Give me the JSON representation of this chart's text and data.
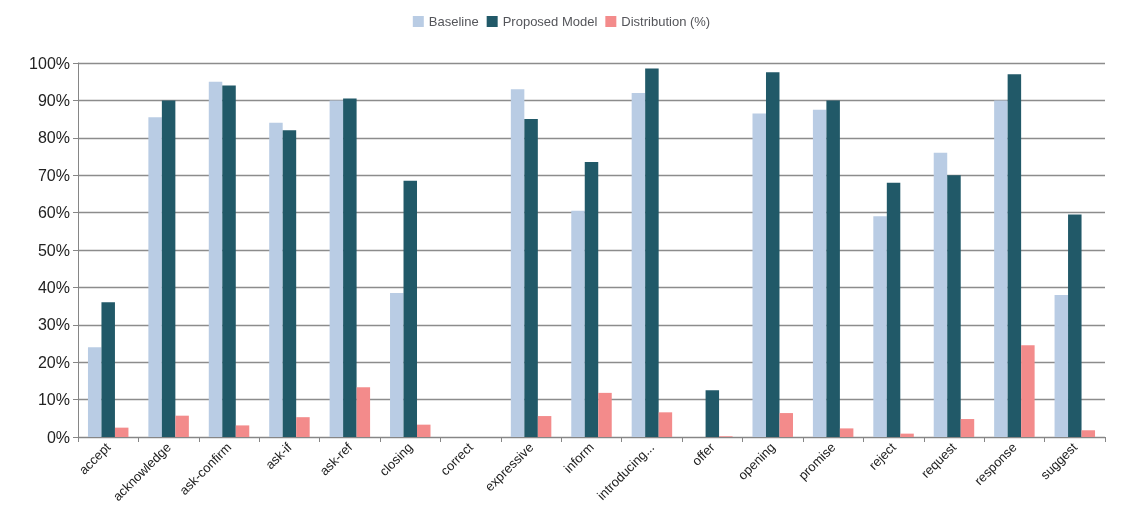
{
  "chart_data": {
    "type": "bar",
    "categories": [
      "accept",
      "acknowledge",
      "ask-confirm",
      "ask-if",
      "ask-ref",
      "closing",
      "correct",
      "expressive",
      "inform",
      "introducing...",
      "offer",
      "opening",
      "promise",
      "reject",
      "request",
      "response",
      "suggest"
    ],
    "series": [
      {
        "name": "Baseline",
        "color": "#b9cce4",
        "values": [
          24,
          85.5,
          95,
          84,
          90,
          38.5,
          0,
          93,
          60.5,
          92,
          0,
          86.5,
          87.5,
          59,
          76,
          90,
          38
        ]
      },
      {
        "name": "Proposed Model",
        "color": "#215968",
        "values": [
          36,
          90,
          94,
          82,
          90.5,
          68.5,
          0,
          85,
          73.5,
          98.5,
          12.5,
          97.5,
          90,
          68,
          70,
          97,
          59.5
        ]
      },
      {
        "name": "Distribution (%)",
        "color": "#f38b8b",
        "values": [
          2.5,
          5.7,
          3.1,
          5.3,
          13.3,
          3.3,
          0,
          5.6,
          11.8,
          6.6,
          0.2,
          6.4,
          2.3,
          0.9,
          4.8,
          24.5,
          1.8
        ]
      }
    ],
    "ylim": [
      0,
      100
    ],
    "yticks": [
      {
        "value": 0,
        "label": "0%"
      },
      {
        "value": 10,
        "label": "10%"
      },
      {
        "value": 20,
        "label": "20%"
      },
      {
        "value": 30,
        "label": "30%"
      },
      {
        "value": 40,
        "label": "40%"
      },
      {
        "value": 50,
        "label": "50%"
      },
      {
        "value": 60,
        "label": "60%"
      },
      {
        "value": 70,
        "label": "70%"
      },
      {
        "value": 80,
        "label": "80%"
      },
      {
        "value": 90,
        "label": "90%"
      },
      {
        "value": 100,
        "label": "100%"
      }
    ],
    "grid": "y",
    "legend": "top"
  }
}
